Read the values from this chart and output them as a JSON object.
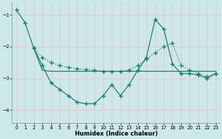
{
  "xlabel": "Humidex (Indice chaleur)",
  "background_color": "#cce8ea",
  "grid_color": "#e8c8c8",
  "line_color": "#1a7a6e",
  "xlim": [
    -0.5,
    23.5
  ],
  "ylim": [
    -4.4,
    -0.6
  ],
  "yticks": [
    -4,
    -3,
    -2,
    -1
  ],
  "xticks": [
    0,
    1,
    2,
    3,
    4,
    5,
    6,
    7,
    8,
    9,
    10,
    11,
    12,
    13,
    14,
    15,
    16,
    17,
    18,
    19,
    20,
    21,
    22,
    23
  ],
  "line1_x": [
    0,
    1,
    2,
    3,
    4,
    5,
    6,
    7,
    8,
    9,
    10,
    11,
    12,
    13,
    14,
    15,
    16,
    17,
    18,
    19,
    20,
    21,
    22,
    23
  ],
  "line1_y": [
    -0.85,
    -1.25,
    -2.05,
    -2.6,
    -3.15,
    -3.35,
    -3.55,
    -3.75,
    -3.8,
    -3.8,
    -3.55,
    -3.2,
    -3.55,
    -3.2,
    -2.75,
    -2.35,
    -1.15,
    -1.45,
    -2.55,
    -2.85,
    -2.85,
    -2.9,
    -3.0,
    -2.85
  ],
  "line1_style": "-",
  "line1_marker": "+",
  "line1_ms": 4,
  "line2_x": [
    2,
    3,
    4,
    5,
    6,
    7,
    8,
    9,
    10,
    11,
    12,
    13,
    14,
    15,
    16,
    17,
    18,
    19,
    20,
    21,
    22,
    23
  ],
  "line2_y": [
    -2.05,
    -2.75,
    -2.78,
    -2.78,
    -2.78,
    -2.78,
    -2.78,
    -2.78,
    -2.78,
    -2.78,
    -2.78,
    -2.78,
    -2.78,
    -2.78,
    -2.78,
    -2.78,
    -2.78,
    -2.78,
    -2.78,
    -2.78,
    -2.78,
    -2.78
  ],
  "line2_style": "-",
  "line2_marker": null,
  "line3_x": [
    2,
    3,
    4,
    5,
    6,
    7,
    8,
    9,
    10,
    11,
    12,
    13,
    14,
    15,
    16,
    17,
    18,
    19,
    20,
    21,
    22,
    23
  ],
  "line3_y": [
    -2.05,
    -2.35,
    -2.5,
    -2.6,
    -2.65,
    -2.7,
    -2.72,
    -2.75,
    -2.78,
    -2.78,
    -2.78,
    -2.75,
    -2.6,
    -2.4,
    -2.2,
    -2.0,
    -1.9,
    -2.6,
    -2.75,
    -2.85,
    -2.95,
    -2.85
  ],
  "line3_style": ":",
  "line3_marker": "+",
  "line3_ms": 4
}
